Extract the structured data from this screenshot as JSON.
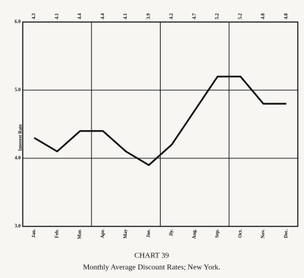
{
  "chart_data": {
    "type": "line",
    "title": "CHART 39",
    "subtitle": "Monthly Average Discount Rates; New York.",
    "y_label": "Interest Rate",
    "categories": [
      "Jan.",
      "Feb.",
      "Mar.",
      "Apr.",
      "May",
      "Jne.",
      "Jly.",
      "Aug.",
      "Sep.",
      "Oct.",
      "Nov.",
      "Dec."
    ],
    "values": [
      4.3,
      4.1,
      4.4,
      4.4,
      4.1,
      3.9,
      4.2,
      4.7,
      5.2,
      5.2,
      4.8,
      4.8
    ],
    "color": "#111111",
    "ylim": [
      3,
      6
    ],
    "yticks": [
      {
        "value": 3,
        "label": "3.0"
      },
      {
        "value": 4,
        "label": "4.0"
      },
      {
        "value": 5,
        "label": "5.0"
      },
      {
        "value": 6,
        "label": "6.0"
      }
    ],
    "grid": true
  }
}
